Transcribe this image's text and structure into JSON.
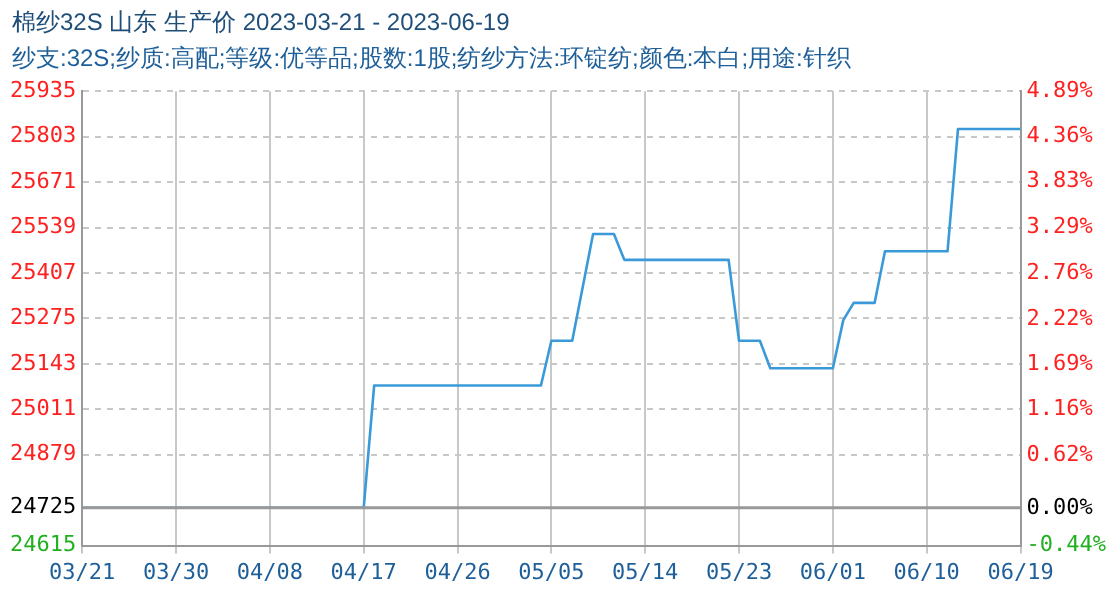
{
  "chart_data": {
    "type": "line",
    "title": "棉纱32S 山东 生产价 2023-03-21 - 2023-06-19",
    "subtitle": "纱支:32S;纱质:高配;等级:优等品;股数:1股;纺纱方法:环锭纺;颜色:本白;用途:针织",
    "x": [
      "2023-03-21",
      "2023-04-17",
      "2023-04-18",
      "2023-05-04",
      "2023-05-05",
      "2023-05-07",
      "2023-05-09",
      "2023-05-11",
      "2023-05-12",
      "2023-05-22",
      "2023-05-23",
      "2023-05-25",
      "2023-05-26",
      "2023-06-01",
      "2023-06-02",
      "2023-06-03",
      "2023-06-05",
      "2023-06-06",
      "2023-06-12",
      "2023-06-13",
      "2023-06-19"
    ],
    "series": [
      {
        "color": "#3a9ad9",
        "values": [
          24725,
          24725,
          25080,
          25080,
          25210,
          25210,
          25520,
          25520,
          25445,
          25445,
          25210,
          25210,
          25130,
          25130,
          25270,
          25320,
          25320,
          25470,
          25470,
          25825,
          25825
        ]
      }
    ],
    "xlim": [
      "2023-03-21",
      "2023-06-19"
    ],
    "xticks": [
      {
        "value": "2023-03-21",
        "label": "03/21"
      },
      {
        "value": "2023-03-30",
        "label": "03/30"
      },
      {
        "value": "2023-04-08",
        "label": "04/08"
      },
      {
        "value": "2023-04-17",
        "label": "04/17"
      },
      {
        "value": "2023-04-26",
        "label": "04/26"
      },
      {
        "value": "2023-05-05",
        "label": "05/05"
      },
      {
        "value": "2023-05-14",
        "label": "05/14"
      },
      {
        "value": "2023-05-23",
        "label": "05/23"
      },
      {
        "value": "2023-06-01",
        "label": "06/01"
      },
      {
        "value": "2023-06-10",
        "label": "06/10"
      },
      {
        "value": "2023-06-19",
        "label": "06/19"
      }
    ],
    "ylim": [
      24615,
      25935
    ],
    "yticks": [
      24615,
      24725,
      24879,
      25011,
      25143,
      25275,
      25407,
      25539,
      25671,
      25803,
      25935
    ],
    "y2lim": [
      -0.44,
      4.89
    ],
    "y2ticks": [
      {
        "value": -0.44,
        "label": "-0.44%"
      },
      {
        "value": 0,
        "label": "0.00%"
      },
      {
        "value": 0.62,
        "label": "0.62%"
      },
      {
        "value": 1.16,
        "label": "1.16%"
      },
      {
        "value": 1.69,
        "label": "1.69%"
      },
      {
        "value": 2.22,
        "label": "2.22%"
      },
      {
        "value": 2.76,
        "label": "2.76%"
      },
      {
        "value": 3.29,
        "label": "3.29%"
      },
      {
        "value": 3.83,
        "label": "3.83%"
      },
      {
        "value": 4.36,
        "label": "4.36%"
      },
      {
        "value": 4.89,
        "label": "4.89%"
      }
    ],
    "ref_lines": [
      {
        "axis": "y",
        "value": 24725,
        "color": "#999999"
      }
    ],
    "grid": true,
    "legend": false,
    "marker": "none",
    "line_style": "solid"
  }
}
